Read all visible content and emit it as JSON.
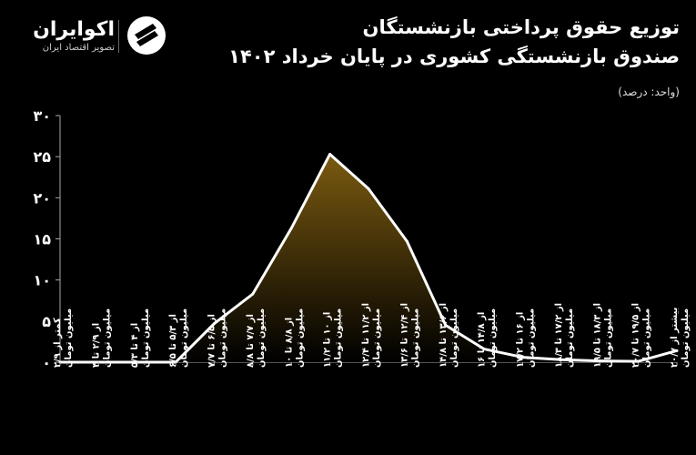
{
  "header": {
    "title_line1": "توزیع حقوق پرداختی بازنشستگان",
    "title_line2": "صندوق بازنشستگی کشوری در پایان خرداد ۱۴۰۲",
    "unit": "(واحد: درصد)"
  },
  "brand": {
    "name": "اکوایران",
    "tagline": "تصویر اقتصاد ایران"
  },
  "colors": {
    "background": "#000000",
    "line": "#ffffff",
    "fill_top": "#7a5a10",
    "fill_bottom": "#000000",
    "grid": "#444444"
  },
  "chart_data": {
    "type": "area",
    "title": "توزیع حقوق پرداختی بازنشستگان صندوق بازنشستگی کشوری در پایان خرداد ۱۴۰۲",
    "ylabel": "(واحد: درصد)",
    "ylim": [
      0,
      30
    ],
    "yticks": [
      "۰",
      "۵",
      "۱۰",
      "۱۵",
      "۲۰",
      "۲۵",
      "۳۰"
    ],
    "grid": false,
    "categories": [
      "کمتر از ۲/۹ میلیون تومان",
      "از ۲/۹ تا ۴ میلیون تومان",
      "از ۴ تا ۵/۳ میلیون تومان",
      "از ۵/۳ تا ۶/۵ میلیون تومان",
      "از ۶/۵ تا ۷/۷ میلیون تومان",
      "از ۷/۷ تا ۸/۸ میلیون تومان",
      "از ۸/۸ تا ۱۰ میلیون تومان",
      "از ۱۰ تا ۱۱/۲ میلیون تومان",
      "از ۱۱/۲ تا ۱۲/۴ میلیون تومان",
      "از ۱۲/۴ تا ۱۳/۶ میلیون تومان",
      "از ۱۳/۶ تا ۱۴/۸ میلیون تومان",
      "از ۱۴/۸ تا ۱۶ میلیون تومان",
      "از ۱۶ تا ۱۷/۲ میلیون تومان",
      "از ۱۷/۲ تا ۱۸/۳ میلیون تومان",
      "از ۱۸/۳ تا ۱۹/۵ میلیون تومان",
      "از ۱۹/۵ تا ۲۰/۷ میلیون تومان",
      "بیشتر از ۲۰/۷ میلیون تومان"
    ],
    "series": [
      {
        "values": [
          0,
          0,
          0,
          0,
          4.7,
          8.3,
          16.3,
          25.3,
          21.1,
          14.7,
          4.5,
          1.6,
          0.6,
          0.3,
          0.15,
          0.1,
          1.4
        ]
      }
    ]
  }
}
